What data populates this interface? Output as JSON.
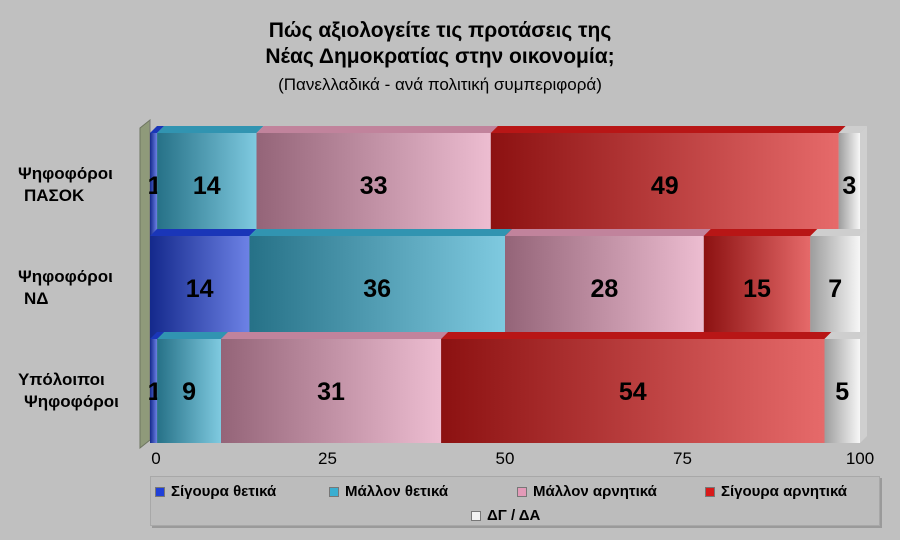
{
  "title": {
    "line1": "Πώς αξιολογείτε  τις προτάσεις της",
    "line2": "Νέας Δημοκρατίας στην οικονομία;",
    "subtitle": "(Πανελλαδικά - ανά πολιτική συμπεριφορά)"
  },
  "chart_data": {
    "type": "bar",
    "orientation": "horizontal",
    "stacked": true,
    "categories": [
      [
        "Ψηφοφόροι",
        "ΠΑΣΟΚ"
      ],
      [
        "Ψηφοφόροι",
        "ΝΔ"
      ],
      [
        "Υπόλοιποι",
        "Ψηφοφόροι"
      ]
    ],
    "series": [
      {
        "name": "Σίγουρα θετικά",
        "values": [
          1,
          14,
          1
        ],
        "color": "#1f3fd8"
      },
      {
        "name": "Μάλλον θετικά",
        "values": [
          14,
          36,
          9
        ],
        "color": "#3aaed0"
      },
      {
        "name": "Μάλλον αρνητικά",
        "values": [
          33,
          28,
          31
        ],
        "color": "#e39ab8"
      },
      {
        "name": "Σίγουρα αρνητικά",
        "values": [
          49,
          15,
          54
        ],
        "color": "#d81a1a"
      },
      {
        "name": "ΔΓ / ΔΑ",
        "values": [
          3,
          7,
          5
        ],
        "color": "#f2f2f2"
      }
    ],
    "xlim": [
      0,
      100
    ],
    "xticks": [
      0,
      25,
      50,
      75,
      100
    ],
    "legend": "bottom"
  }
}
